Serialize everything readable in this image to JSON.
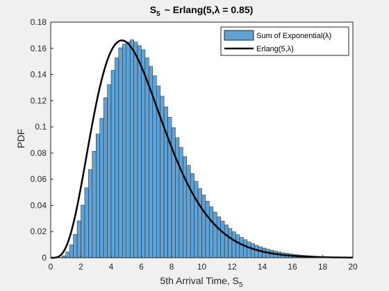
{
  "chart_data": {
    "type": "bar",
    "title_main": "S",
    "title_sub": "5",
    "title_rest": "~ Erlang(5,λ = 0.85)",
    "xlabel_main": "5th Arrival Time, S",
    "xlabel_sub": "5",
    "ylabel": "PDF",
    "xlim": [
      0,
      20
    ],
    "ylim": [
      0,
      0.18
    ],
    "xticks": [
      "0",
      "2",
      "4",
      "6",
      "8",
      "10",
      "12",
      "14",
      "16",
      "18",
      "20"
    ],
    "yticks": [
      "0",
      "0.02",
      "0.04",
      "0.06",
      "0.08",
      "0.1",
      "0.12",
      "0.14",
      "0.16",
      "0.18"
    ],
    "bin_edges_start": 0,
    "bin_width": 0.25,
    "bin_values": [
      0,
      0,
      0.00022,
      0.00146,
      0.00444,
      0.00983,
      0.0178,
      0.0281,
      0.0402,
      0.0535,
      0.0674,
      0.0813,
      0.0945,
      0.1065,
      0.1223,
      0.1323,
      0.1432,
      0.1527,
      0.1604,
      0.1632,
      0.1649,
      0.1665,
      0.1648,
      0.162,
      0.1589,
      0.1527,
      0.1462,
      0.139,
      0.1313,
      0.1234,
      0.1153,
      0.1073,
      0.0994,
      0.0917,
      0.0843,
      0.0773,
      0.0706,
      0.0643,
      0.0584,
      0.0529,
      0.0479,
      0.0432,
      0.0389,
      0.0349,
      0.0313,
      0.028,
      0.025,
      0.0223,
      0.0198,
      0.0176,
      0.0156,
      0.0138,
      0.0122,
      0.0108,
      0.0095,
      0.0084,
      0.0074,
      0.0065,
      0.0057,
      0.005,
      0.0044,
      0.0038,
      0.0034,
      0.0029,
      0.0026,
      0.0022,
      0.0019,
      0.0017,
      0.0015,
      0.0013,
      0.0011
    ],
    "series": [
      {
        "name": "Sum of Exponential(λ)",
        "kind": "histogram",
        "color": "#5fa2d6"
      },
      {
        "name": "Erlang(5,λ)",
        "kind": "pdf-curve",
        "color": "#000000",
        "k": 5,
        "lambda": 0.85
      }
    ],
    "legend_position": "top-right",
    "grid": false
  }
}
